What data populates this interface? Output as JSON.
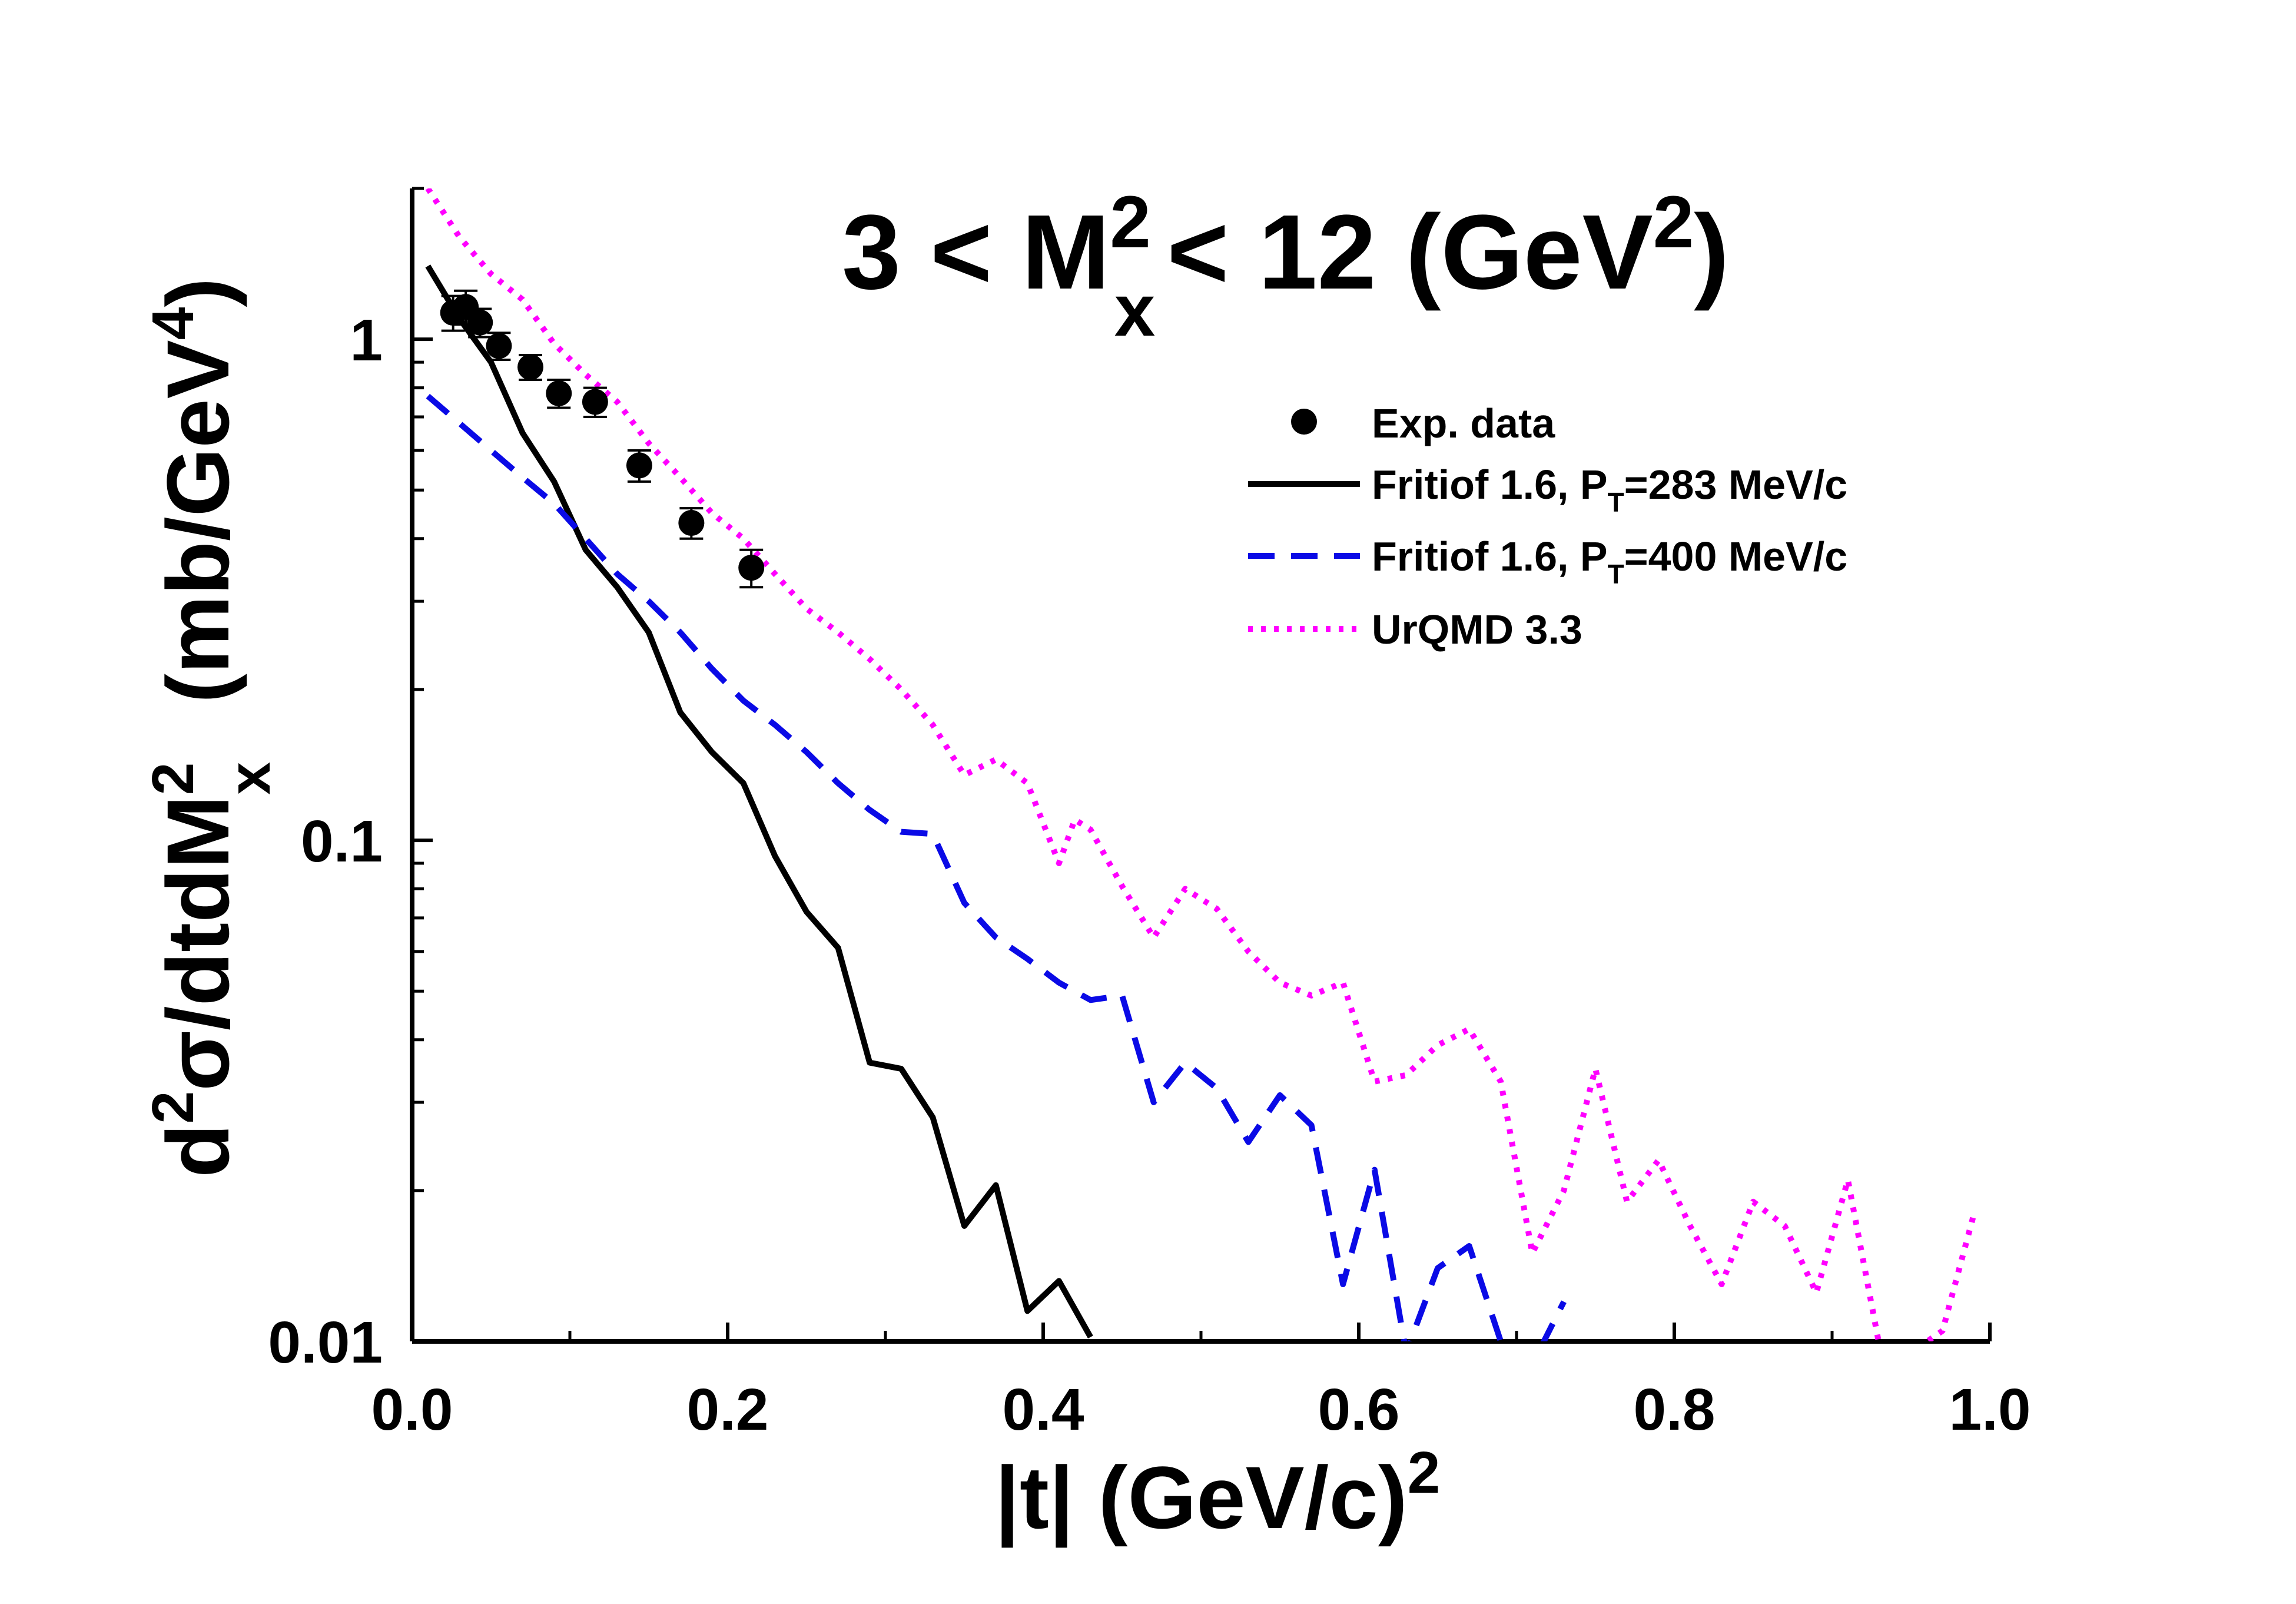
{
  "chart_data": {
    "type": "line",
    "title": {
      "prefix": "3  < M",
      "sup1": "2",
      "sub1": "x",
      "middle": "< 12 (GeV",
      "sup2": "2",
      "suffix": ")"
    },
    "xlabel": {
      "main": "|t| (GeV/c)",
      "sup": "2"
    },
    "ylabel": {
      "d": "d",
      "sup_d": "2",
      "sigma_part": "σ/dtdM",
      "sup_M": "2",
      "sub_x": "x",
      "units": "(mb/GeV",
      "sup_units": "4",
      "close": ")"
    },
    "xlim": [
      0.0,
      1.0
    ],
    "ylim": [
      0.01,
      2.0
    ],
    "yscale": "log",
    "x_ticks": [
      "0.0",
      "0.2",
      "0.4",
      "0.6",
      "0.8",
      "1.0"
    ],
    "x_tick_values": [
      0.0,
      0.2,
      0.4,
      0.6,
      0.8,
      1.0
    ],
    "y_ticks": [
      "0.01",
      "0.1",
      "1"
    ],
    "y_tick_values": [
      0.01,
      0.1,
      1
    ],
    "legend_position": "top-right",
    "series": [
      {
        "name": "Exp. data",
        "legend_label": "Exp. data",
        "style": "markers",
        "color": "#000000",
        "points": [
          {
            "x": 0.026,
            "y": 1.13,
            "err": 0.09
          },
          {
            "x": 0.034,
            "y": 1.16,
            "err": 0.09
          },
          {
            "x": 0.043,
            "y": 1.08,
            "err": 0.07
          },
          {
            "x": 0.055,
            "y": 0.97,
            "err": 0.06
          },
          {
            "x": 0.075,
            "y": 0.88,
            "err": 0.05
          },
          {
            "x": 0.093,
            "y": 0.78,
            "err": 0.05
          },
          {
            "x": 0.116,
            "y": 0.75,
            "err": 0.05
          },
          {
            "x": 0.144,
            "y": 0.56,
            "err": 0.04
          },
          {
            "x": 0.177,
            "y": 0.43,
            "err": 0.03
          },
          {
            "x": 0.215,
            "y": 0.35,
            "err": 0.03
          }
        ]
      },
      {
        "name": "Fritiof 1.6, PT=283 MeV/c",
        "legend_label": "Fritiof 1.6, P",
        "legend_sub": "T",
        "legend_suffix": "=283 MeV/c",
        "style": "solid",
        "color": "#000000",
        "x": [
          0.01,
          0.03,
          0.05,
          0.07,
          0.09,
          0.11,
          0.13,
          0.15,
          0.17,
          0.19,
          0.21,
          0.23,
          0.25,
          0.27,
          0.29,
          0.31,
          0.33,
          0.35,
          0.37,
          0.39,
          0.41,
          0.43
        ],
        "y": [
          1.4,
          1.1,
          0.9,
          0.65,
          0.52,
          0.38,
          0.32,
          0.26,
          0.18,
          0.15,
          0.13,
          0.093,
          0.072,
          0.061,
          0.036,
          0.035,
          0.028,
          0.017,
          0.0205,
          0.0115,
          0.0132,
          0.0102
        ]
      },
      {
        "name": "Fritiof 1.6, PT=400 MeV/c",
        "legend_label": "Fritiof 1.6, P",
        "legend_sub": "T",
        "legend_suffix": "=400 MeV/c",
        "style": "dashed",
        "color": "#0a0ae6",
        "x": [
          0.01,
          0.03,
          0.05,
          0.07,
          0.09,
          0.11,
          0.13,
          0.15,
          0.17,
          0.19,
          0.21,
          0.23,
          0.25,
          0.27,
          0.29,
          0.31,
          0.33,
          0.35,
          0.37,
          0.39,
          0.41,
          0.43,
          0.45,
          0.47,
          0.49,
          0.51,
          0.53,
          0.55,
          0.57,
          0.59,
          0.61,
          0.63,
          0.65,
          0.67,
          0.69,
          0.71,
          0.73
        ],
        "y": [
          0.77,
          0.68,
          0.6,
          0.53,
          0.47,
          0.4,
          0.34,
          0.3,
          0.26,
          0.22,
          0.19,
          0.17,
          0.15,
          0.13,
          0.115,
          0.104,
          0.103,
          0.075,
          0.064,
          0.058,
          0.052,
          0.048,
          0.049,
          0.03,
          0.036,
          0.032,
          0.025,
          0.031,
          0.027,
          0.013,
          0.022,
          0.0095,
          0.014,
          0.0155,
          0.01,
          0.009,
          0.012
        ]
      },
      {
        "name": "UrQMD 3.3",
        "legend_label": "UrQMD 3.3",
        "style": "dotted",
        "color": "#ff00ff",
        "x": [
          0.01,
          0.03,
          0.05,
          0.07,
          0.09,
          0.11,
          0.13,
          0.15,
          0.17,
          0.19,
          0.21,
          0.23,
          0.25,
          0.27,
          0.29,
          0.31,
          0.33,
          0.35,
          0.37,
          0.39,
          0.41,
          0.42,
          0.43,
          0.45,
          0.47,
          0.49,
          0.51,
          0.53,
          0.55,
          0.57,
          0.59,
          0.61,
          0.63,
          0.65,
          0.67,
          0.69,
          0.71,
          0.73,
          0.75,
          0.77,
          0.79,
          0.81,
          0.83,
          0.85,
          0.87,
          0.89,
          0.91,
          0.93,
          0.95,
          0.97,
          0.99
        ],
        "y": [
          2.0,
          1.6,
          1.35,
          1.2,
          0.98,
          0.85,
          0.75,
          0.62,
          0.53,
          0.45,
          0.4,
          0.34,
          0.29,
          0.26,
          0.23,
          0.2,
          0.17,
          0.135,
          0.145,
          0.13,
          0.09,
          0.11,
          0.105,
          0.081,
          0.064,
          0.08,
          0.073,
          0.06,
          0.052,
          0.049,
          0.052,
          0.033,
          0.034,
          0.039,
          0.042,
          0.033,
          0.015,
          0.02,
          0.035,
          0.019,
          0.023,
          0.017,
          0.013,
          0.019,
          0.017,
          0.0125,
          0.021,
          0.0098,
          0.0095,
          0.0105,
          0.018
        ]
      }
    ]
  }
}
